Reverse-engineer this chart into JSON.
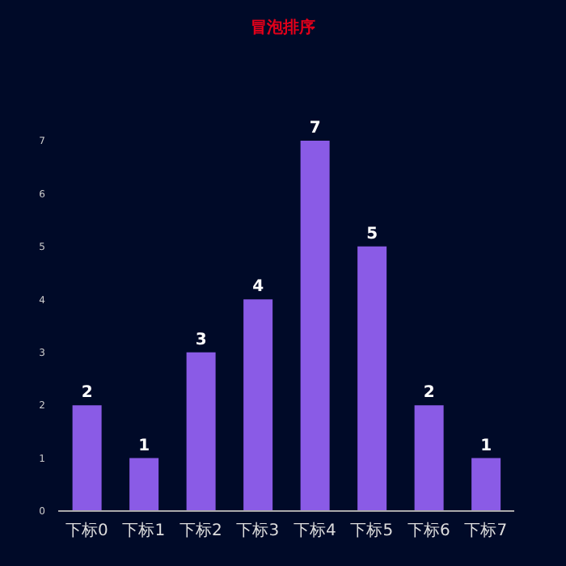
{
  "chart_data": {
    "type": "bar",
    "title": "冒泡排序",
    "categories": [
      "下标0",
      "下标1",
      "下标2",
      "下标3",
      "下标4",
      "下标5",
      "下标6",
      "下标7"
    ],
    "values": [
      2,
      1,
      3,
      4,
      7,
      5,
      2,
      1
    ],
    "color": "#8a5be6",
    "ylim": [
      0,
      7
    ],
    "yticks": [
      0,
      1,
      2,
      3,
      4,
      5,
      6,
      7
    ],
    "data_labels": true
  }
}
